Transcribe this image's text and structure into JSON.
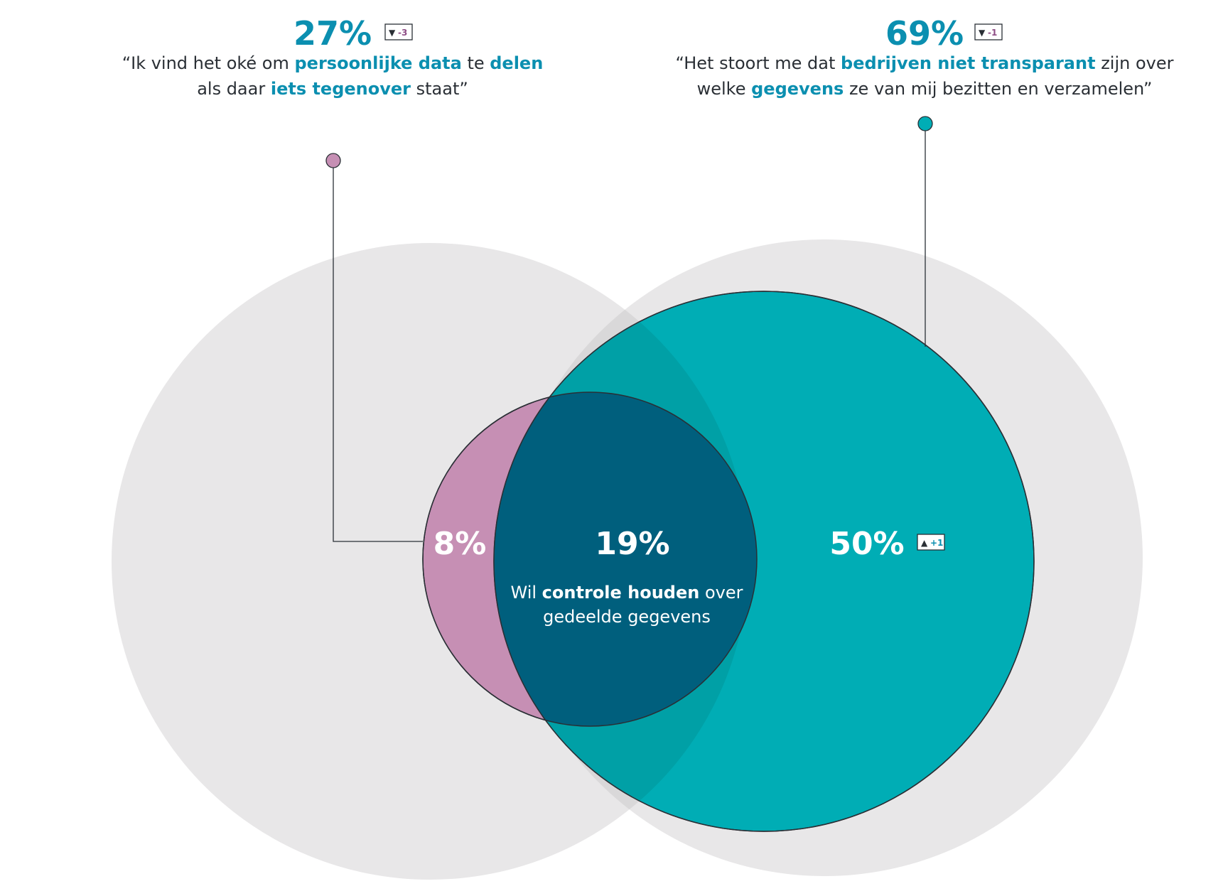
{
  "colors": {
    "accent_blue": "#0b8fb0",
    "teal": "#00adb5",
    "pink": "#c68fb4",
    "navy": "#005f7d",
    "grey": "#e8e7e8",
    "text_dark": "#2a2f35"
  },
  "left": {
    "percent": "27%",
    "badge": {
      "arrow": "▼",
      "value": "-3"
    },
    "quote_line1": [
      {
        "text": "“Ik vind het oké om ",
        "bold": false
      },
      {
        "text": "persoonlijke data",
        "bold": true
      },
      {
        "text": " te ",
        "bold": false
      },
      {
        "text": "delen",
        "bold": true
      }
    ],
    "quote_line2": [
      {
        "text": "als daar ",
        "bold": false
      },
      {
        "text": "iets tegenover",
        "bold": true
      },
      {
        "text": " staat”",
        "bold": false
      }
    ]
  },
  "right": {
    "percent": "69%",
    "badge": {
      "arrow": "▼",
      "value": "-1"
    },
    "quote_line1": [
      {
        "text": "“Het stoort me dat ",
        "bold": false
      },
      {
        "text": "bedrijven niet transparant",
        "bold": true
      },
      {
        "text": " zijn over",
        "bold": false
      }
    ],
    "quote_line2": [
      {
        "text": "welke ",
        "bold": false
      },
      {
        "text": "gegevens",
        "bold": true
      },
      {
        "text": " ze van mij bezitten en verzamelen”",
        "bold": false
      }
    ]
  },
  "venn": {
    "pink_only": {
      "percent": "8%"
    },
    "overlap": {
      "percent": "19%",
      "label_line1": [
        {
          "text": "Wil ",
          "bold": false
        },
        {
          "text": "controle houden",
          "bold": true
        },
        {
          "text": " over",
          "bold": false
        }
      ],
      "label_line2": "gedeelde gegevens"
    },
    "teal_only": {
      "percent": "50%",
      "badge": {
        "arrow": "▲",
        "value": "+1"
      }
    }
  }
}
